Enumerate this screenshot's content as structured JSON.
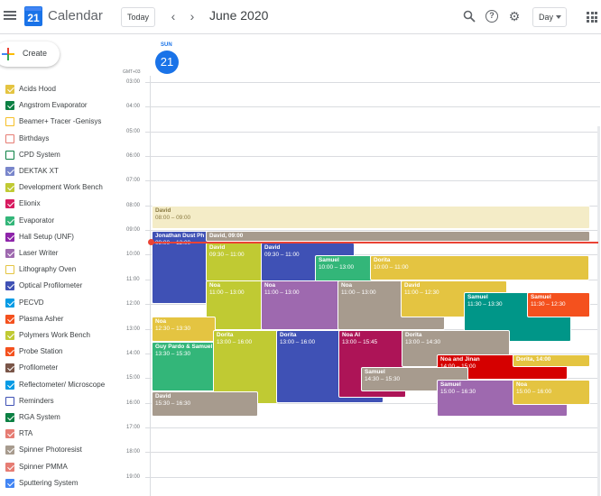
{
  "header": {
    "app_title": "Calendar",
    "logo_day": "21",
    "today_label": "Today",
    "prev_icon": "chevron-left-icon",
    "next_icon": "chevron-right-icon",
    "period": "June 2020",
    "view": "Day",
    "icons": [
      "search-icon",
      "help-icon",
      "gear-icon",
      "apps-grid-icon"
    ]
  },
  "create": {
    "label": "Create"
  },
  "calendars": [
    {
      "label": "Acids Hood",
      "color": "#e4c441",
      "checked": true
    },
    {
      "label": "Angstrom Evaporator",
      "color": "#0b8043",
      "checked": true
    },
    {
      "label": "Beamer+ Tracer -Genisys",
      "color": "#f6bf26",
      "checked": false
    },
    {
      "label": "Birthdays",
      "color": "#e67c73",
      "checked": false
    },
    {
      "label": "CPD System",
      "color": "#0b8043",
      "checked": false
    },
    {
      "label": "DEKTAK XT",
      "color": "#7986cb",
      "checked": true
    },
    {
      "label": "Development Work Bench",
      "color": "#c0ca33",
      "checked": true
    },
    {
      "label": "Elionix",
      "color": "#d81b60",
      "checked": true
    },
    {
      "label": "Evaporator",
      "color": "#33b679",
      "checked": true
    },
    {
      "label": "Hall Setup (UNF)",
      "color": "#8e24aa",
      "checked": true
    },
    {
      "label": "Laser Writer",
      "color": "#9e69af",
      "checked": true
    },
    {
      "label": "Lithography Oven",
      "color": "#e4c441",
      "checked": false
    },
    {
      "label": "Optical Profilometer",
      "color": "#3f51b5",
      "checked": true
    },
    {
      "label": "PECVD",
      "color": "#039be5",
      "checked": true
    },
    {
      "label": "Plasma Asher",
      "color": "#f4511e",
      "checked": true
    },
    {
      "label": "Polymers Work Bench",
      "color": "#c0ca33",
      "checked": true
    },
    {
      "label": "Probe Station",
      "color": "#f4511e",
      "checked": true
    },
    {
      "label": "Profilometer",
      "color": "#795548",
      "checked": true
    },
    {
      "label": "Reflectometer/ Microscope",
      "color": "#039be5",
      "checked": true
    },
    {
      "label": "Reminders",
      "color": "#3f51b5",
      "checked": false
    },
    {
      "label": "RGA System",
      "color": "#0b8043",
      "checked": true
    },
    {
      "label": "RTA",
      "color": "#e67c73",
      "checked": true
    },
    {
      "label": "Spinner Photoresist",
      "color": "#a79b8e",
      "checked": true
    },
    {
      "label": "Spinner PMMA",
      "color": "#e67c73",
      "checked": true
    },
    {
      "label": "Sputtering System",
      "color": "#4285f4",
      "checked": true
    }
  ],
  "day": {
    "gmt": "GMT+03",
    "dow": "SUN",
    "date": "21"
  },
  "hours": [
    "03:00",
    "04:00",
    "05:00",
    "06:00",
    "07:00",
    "08:00",
    "09:00",
    "10:00",
    "11:00",
    "12:00",
    "13:00",
    "14:00",
    "15:00",
    "16:00",
    "17:00",
    "18:00",
    "19:00"
  ],
  "events": [
    {
      "title": "David",
      "time": "08:00 – 09:00",
      "color": "#f4ecc7",
      "light": true
    },
    {
      "title": "Jonathan Dust Ph",
      "time": "09:00 – 12:00",
      "color": "#3f51b5"
    },
    {
      "title": "David, 09:00",
      "time": "",
      "color": "#a79b8e"
    },
    {
      "title": "David",
      "time": "09:30 – 11:00",
      "color": "#c0ca33"
    },
    {
      "title": "David",
      "time": "09:30 – 11:00",
      "color": "#3f51b5"
    },
    {
      "title": "Samuel",
      "time": "10:00 – 13:00",
      "color": "#33b679"
    },
    {
      "title": "Dorita",
      "time": "10:00 – 11:00",
      "color": "#e4c441"
    },
    {
      "title": "Noa",
      "time": "11:00 – 13:00",
      "color": "#c0ca33"
    },
    {
      "title": "Noa",
      "time": "11:00 – 13:00",
      "color": "#9e69af"
    },
    {
      "title": "Noa",
      "time": "11:00 – 13:00",
      "color": "#a79b8e"
    },
    {
      "title": "David",
      "time": "11:00 – 12:30",
      "color": "#e4c441"
    },
    {
      "title": "Samuel",
      "time": "11:30 – 13:30",
      "color": "#009688"
    },
    {
      "title": "Samuel",
      "time": "11:30 – 12:30",
      "color": "#f4511e"
    },
    {
      "title": "Noa",
      "time": "12:30 – 13:30",
      "color": "#e4c441"
    },
    {
      "title": "Guy Pardo & Samuel",
      "time": "13:30 – 15:30",
      "color": "#33b679"
    },
    {
      "title": "Dorita",
      "time": "13:00 – 16:00",
      "color": "#c0ca33"
    },
    {
      "title": "Dorita",
      "time": "13:00 – 16:00",
      "color": "#3f51b5"
    },
    {
      "title": "Noa Al",
      "time": "13:00 – 15:45",
      "color": "#ad1457"
    },
    {
      "title": "Dorita",
      "time": "13:00 – 14:30",
      "color": "#a79b8e"
    },
    {
      "title": "Noa and Jinan",
      "time": "14:00 – 15:00",
      "color": "#d50000"
    },
    {
      "title": "Dorita, 14:00",
      "time": "",
      "color": "#e4c441"
    },
    {
      "title": "Samuel",
      "time": "14:30 – 15:30",
      "color": "#a79b8e"
    },
    {
      "title": "Samuel",
      "time": "15:00 – 16:30",
      "color": "#9e69af"
    },
    {
      "title": "Noa",
      "time": "15:00 – 16:00",
      "color": "#e4c441"
    },
    {
      "title": "David",
      "time": "15:30 – 16:30",
      "color": "#a79b8e"
    }
  ]
}
